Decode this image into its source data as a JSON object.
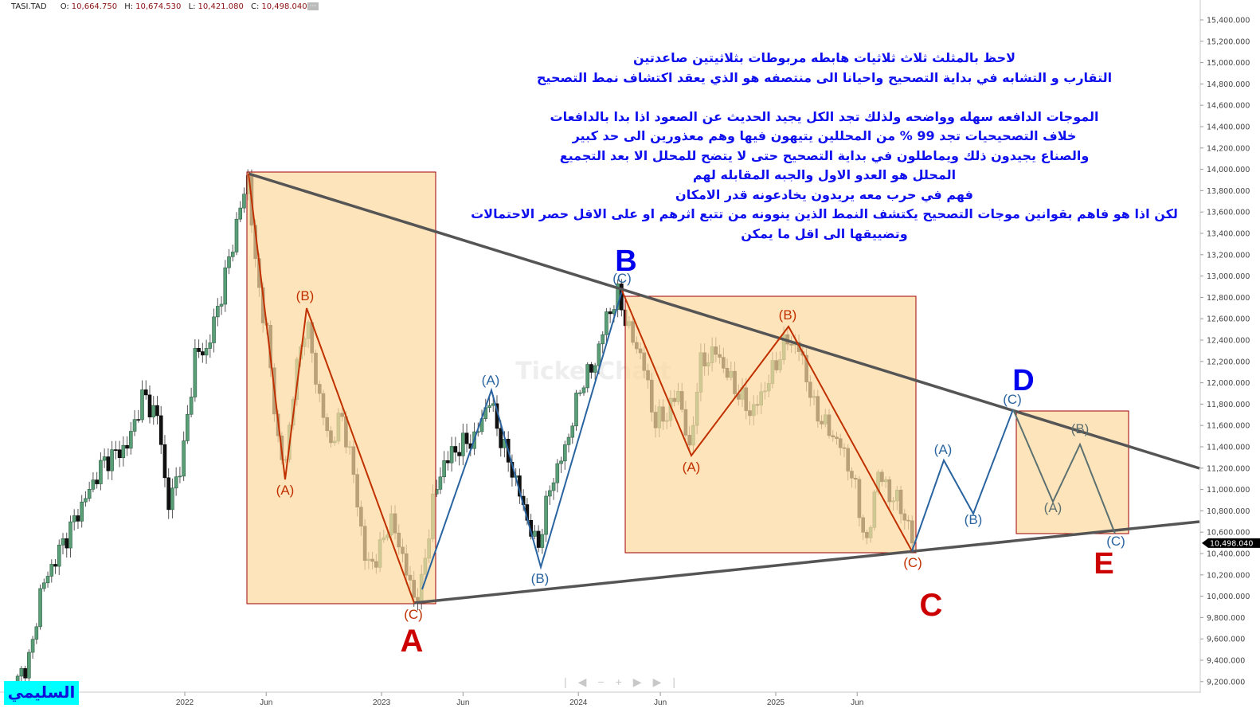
{
  "header": {
    "symbol": "TASI.TAD",
    "open_label": "O:",
    "open": "10,664.750",
    "high_label": "H:",
    "high": "10,674.530",
    "low_label": "L:",
    "low": "10,421.080",
    "close_label": "C:",
    "close": "10,498.040",
    "more_icon": "ellipsis-icon"
  },
  "note_lines": [
    "لاحظ بالمثلث ثلاث ثلاثيات هابطه مربوطات بثلاثيتين صاعدتين",
    "التقارب و التشابه في بداية التصحيح واحيانا الى منتصفه هو الذي يعقد اكتشاف نمط التصحيح",
    "",
    "الموجات الدافعه سهله وواضحه ولذلك تجد الكل يجيد الحديث عن الصعود اذا بدا بالدافعات",
    "خلاف التصحيحيات تجد 99 % من المحللين يتيهون فيها وهم معذورين الى حد كبير",
    "والصناع يجيدون ذلك ويماطلون في بداية التصحيح حتى لا يتضح للمحلل الا بعد التجميع",
    "المحلل هو العدو الاول والجبه المقابله لهم",
    "فهم في حرب معه يريدون يخادعونه قدر الامكان",
    "لكن اذا هو فاهم بقوانين موجات التصحيح يكتشف النمط الذين ينوونه من تتبع اثرهم  او على الاقل حصر الاحتمالات",
    "وتضييقها الى اقل ما يمكن"
  ],
  "signature": "السليمي",
  "watermark": "TickerChart",
  "navigation": {
    "icons": [
      "first-icon",
      "prev-icon",
      "zoom-out-icon",
      "zoom-in-icon",
      "next-icon",
      "last-icon"
    ]
  },
  "colors": {
    "up": "#5a9e78",
    "down": "#111111",
    "box_fill": "#fdd9a0",
    "box_border": "#a00000",
    "trend": "#555555",
    "wave_red": "#c03000",
    "wave_blue": "#2a64a0",
    "wave_gray": "#5c7070",
    "big_red": "#cc0000",
    "big_blue": "#0000ee"
  },
  "chart_data": {
    "type": "candlestick",
    "title": "",
    "interval": "weekly",
    "y_axis": {
      "position": "right",
      "ticks": [
        "15,400.000",
        "15,200.000",
        "15,000.000",
        "14,800.000",
        "14,600.000",
        "14,400.000",
        "14,200.000",
        "14,000.000",
        "13,800.000",
        "13,600.000",
        "13,400.000",
        "13,200.000",
        "13,000.000",
        "12,800.000",
        "12,600.000",
        "12,400.000",
        "12,200.000",
        "12,000.000",
        "11,800.000",
        "11,600.000",
        "11,400.000",
        "11,200.000",
        "11,000.000",
        "10,800.000",
        "10,600.000",
        "10,400.000",
        "10,200.000",
        "10,000.000",
        "9,800.000",
        "9,600.000",
        "9,400.000",
        "9,200.000"
      ],
      "ylim": [
        9100,
        15500
      ]
    },
    "x_axis": {
      "ticks": [
        [
          "2022",
          "2022-01-01"
        ],
        [
          "Jun",
          "2022-06-01"
        ],
        [
          "2023",
          "2023-01-01"
        ],
        [
          "Jun",
          "2023-06-01"
        ],
        [
          "2024",
          "2024-01-01"
        ],
        [
          "Jun",
          "2024-06-01"
        ],
        [
          "2025",
          "2025-01-01"
        ],
        [
          "Jun",
          "2025-06-01"
        ]
      ]
    },
    "last_price_tag": "10,498.040",
    "last_price": 10498.04,
    "close_path": [
      [
        "2021-02-25",
        9206
      ],
      [
        "2021-03-23",
        9467
      ],
      [
        "2021-04-07",
        10027
      ],
      [
        "2021-05-07",
        10363
      ],
      [
        "2021-06-20",
        10810
      ],
      [
        "2021-08-03",
        11258
      ],
      [
        "2021-09-16",
        11407
      ],
      [
        "2021-10-16",
        11892
      ],
      [
        "2021-11-15",
        11631
      ],
      [
        "2021-11-30",
        10810
      ],
      [
        "2021-12-29",
        11333
      ],
      [
        "2022-01-20",
        12265
      ],
      [
        "2022-02-11",
        12302
      ],
      [
        "2022-03-13",
        12900
      ],
      [
        "2022-04-11",
        13572
      ],
      [
        "2022-04-29",
        13945
      ],
      [
        "2022-05-11",
        13124
      ],
      [
        "2022-06-02",
        12452
      ],
      [
        "2022-06-24",
        11407
      ],
      [
        "2022-07-05",
        11183
      ],
      [
        "2022-07-23",
        12004
      ],
      [
        "2022-08-14",
        12601
      ],
      [
        "2022-09-05",
        11930
      ],
      [
        "2022-09-27",
        11407
      ],
      [
        "2022-10-19",
        11706
      ],
      [
        "2022-11-11",
        11109
      ],
      [
        "2022-12-03",
        10288
      ],
      [
        "2022-12-25",
        10363
      ],
      [
        "2023-01-16",
        10736
      ],
      [
        "2023-02-06",
        10437
      ],
      [
        "2023-02-28",
        9990
      ],
      [
        "2023-03-15",
        10064
      ],
      [
        "2023-04-06",
        10885
      ],
      [
        "2023-04-27",
        11258
      ],
      [
        "2023-05-26",
        11407
      ],
      [
        "2023-06-24",
        11482
      ],
      [
        "2023-07-19",
        11855
      ],
      [
        "2023-08-14",
        11407
      ],
      [
        "2023-09-05",
        11109
      ],
      [
        "2023-09-27",
        10736
      ],
      [
        "2023-10-17",
        10437
      ],
      [
        "2023-11-10",
        11034
      ],
      [
        "2023-12-09",
        11407
      ],
      [
        "2024-01-07",
        12004
      ],
      [
        "2024-01-30",
        12153
      ],
      [
        "2024-02-21",
        12601
      ],
      [
        "2024-03-15",
        12825
      ],
      [
        "2024-04-06",
        12452
      ],
      [
        "2024-04-29",
        12228
      ],
      [
        "2024-05-21",
        11631
      ],
      [
        "2024-06-13",
        11706
      ],
      [
        "2024-07-05",
        11930
      ],
      [
        "2024-07-25",
        11333
      ],
      [
        "2024-08-12",
        12153
      ],
      [
        "2024-09-11",
        12302
      ],
      [
        "2024-10-11",
        12004
      ],
      [
        "2024-11-17",
        11706
      ],
      [
        "2024-12-17",
        12004
      ],
      [
        "2025-01-22",
        12414
      ],
      [
        "2025-02-16",
        12302
      ],
      [
        "2025-03-11",
        11780
      ],
      [
        "2025-04-09",
        11557
      ],
      [
        "2025-05-02",
        11407
      ],
      [
        "2025-05-24",
        11109
      ],
      [
        "2025-06-20",
        10437
      ],
      [
        "2025-07-08",
        11183
      ],
      [
        "2025-07-30",
        10960
      ],
      [
        "2025-08-21",
        10848
      ],
      [
        "2025-09-13",
        10498
      ]
    ],
    "wave_labels": {
      "first": {
        "a": "(A)",
        "b": "(B)",
        "c": "(C)",
        "main": "A"
      },
      "second": {
        "a": "(A)",
        "b": "(B)",
        "c": "(C)",
        "main": "B"
      },
      "third": {
        "a": "(A)",
        "b": "(B)",
        "c": "(C)",
        "main": "C"
      },
      "fourth": {
        "a": "(A)",
        "b": "(B)",
        "c": "(C)",
        "main": "D"
      },
      "fifth": {
        "a": "(A)",
        "b": "(B)",
        "c": "(C)",
        "main": "E"
      }
    }
  }
}
